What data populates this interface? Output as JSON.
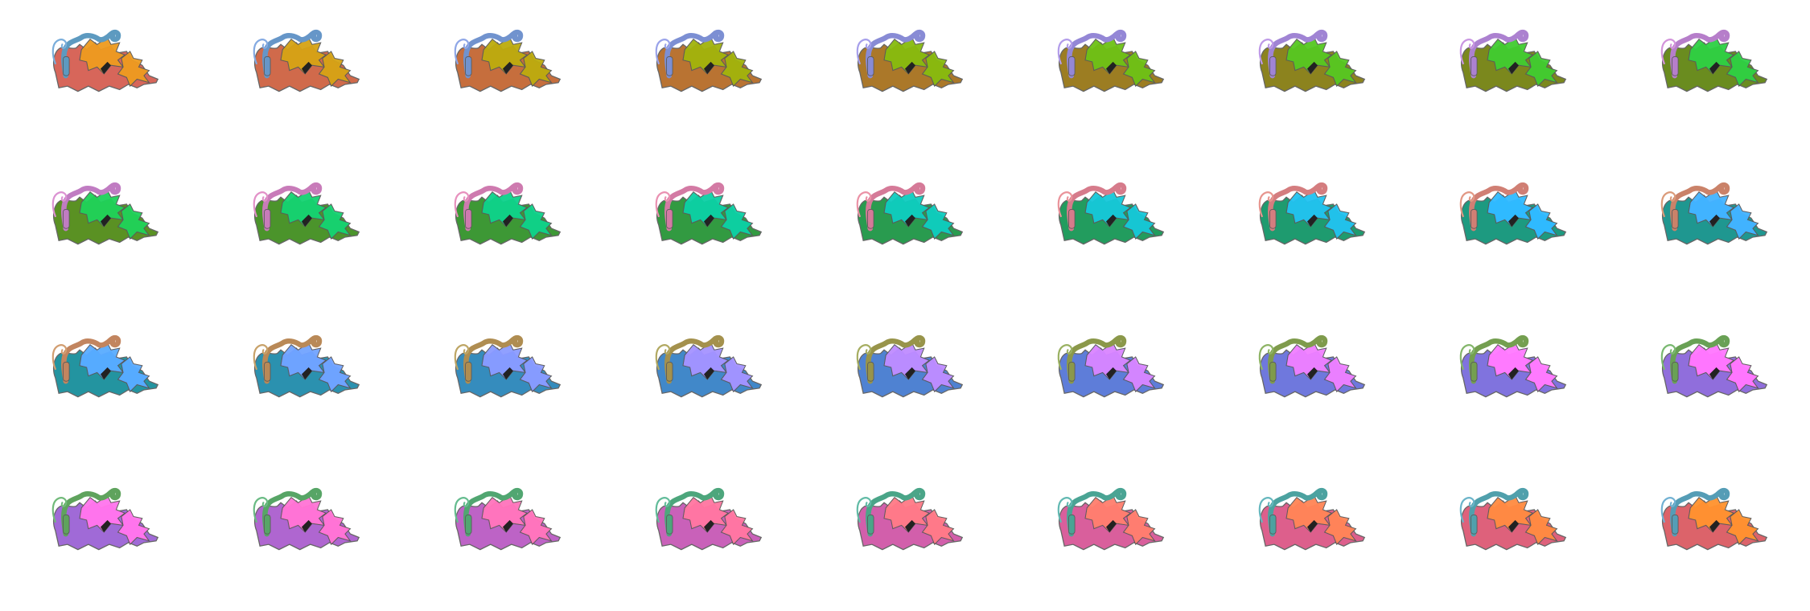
{
  "sprite_sheet": {
    "rows": 4,
    "columns": 9,
    "frame_count": 36,
    "hue_step_degrees": 10,
    "base_colors": {
      "body": "#d45a4c",
      "spike_bright": "#ee9a1e",
      "tail": "#5d9ac0",
      "tail_ring": "#7aaedb",
      "outline": "#5a5a5a",
      "eye": "#222222"
    }
  }
}
